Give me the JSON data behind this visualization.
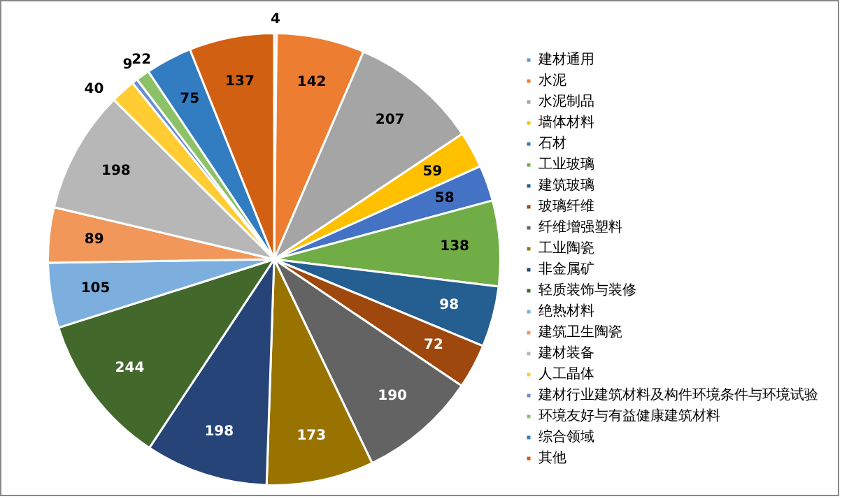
{
  "chart_data": {
    "type": "pie",
    "categories": [
      "建材通用",
      "水泥",
      "水泥制品",
      "墙体材料",
      "石材",
      "工业玻璃",
      "建筑玻璃",
      "玻璃纤维",
      "纤维增强塑料",
      "工业陶瓷",
      "非金属矿",
      "轻质装饰与装修",
      "绝热材料",
      "建筑卫生陶瓷",
      "建材装备",
      "人工晶体",
      "建材行业建筑材料及构件环境条件与环境试验",
      "环境友好与有益健康建筑材料",
      "综合领域",
      "其他"
    ],
    "values": [
      4,
      142,
      207,
      59,
      58,
      138,
      98,
      72,
      190,
      173,
      198,
      244,
      105,
      89,
      198,
      40,
      9,
      22,
      75,
      137
    ],
    "colors": [
      "#5b9bd5",
      "#ed7d31",
      "#a5a5a5",
      "#ffc000",
      "#4472c4",
      "#70ad47",
      "#255e91",
      "#9e480e",
      "#636363",
      "#997300",
      "#264478",
      "#43682b",
      "#7cafdd",
      "#f1975a",
      "#b7b7b7",
      "#ffcd33",
      "#698ed0",
      "#8cc168",
      "#327dc2",
      "#d26012"
    ],
    "data_labels": true,
    "legend": "right"
  }
}
